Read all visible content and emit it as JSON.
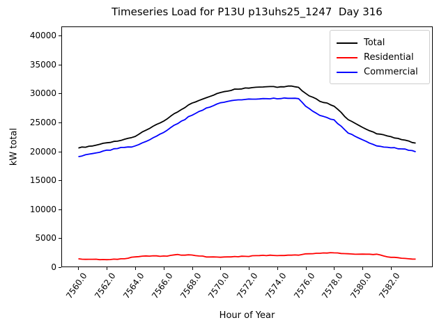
{
  "figure": {
    "background": "#ffffff",
    "frame_color": "#000000"
  },
  "chart_data": {
    "type": "line",
    "title": "Timeseries Load for P13U p13uhs25_1247  Day 316",
    "xlabel": "Hour of Year",
    "ylabel": "kW total",
    "xlim": [
      7558.8,
      7584.95
    ],
    "ylim": [
      0,
      41600
    ],
    "grid": false,
    "legend_position": "upper right",
    "sample_interval_hours": 0.25,
    "xtick_values": [
      7560,
      7562,
      7564,
      7566,
      7568,
      7570,
      7572,
      7574,
      7576,
      7578,
      7580,
      7582
    ],
    "xtick_labels": [
      "7560.0",
      "7562.0",
      "7564.0",
      "7566.0",
      "7568.0",
      "7570.0",
      "7572.0",
      "7574.0",
      "7576.0",
      "7578.0",
      "7580.0",
      "7582.0"
    ],
    "ytick_values": [
      0,
      5000,
      10000,
      15000,
      20000,
      25000,
      30000,
      35000,
      40000
    ],
    "ytick_labels": [
      "0",
      "5000",
      "10000",
      "15000",
      "20000",
      "25000",
      "30000",
      "35000",
      "40000"
    ],
    "x": [
      7560,
      7561,
      7562,
      7563,
      7564,
      7565,
      7566,
      7567,
      7568,
      7569,
      7570,
      7571,
      7572,
      7573,
      7574,
      7575,
      7575.5,
      7576,
      7577,
      7578,
      7579,
      7580,
      7581,
      7582,
      7583,
      7583.75
    ],
    "series": [
      {
        "name": "Total",
        "color": "#000000",
        "values": [
          20600,
          21000,
          21450,
          21900,
          22650,
          23950,
          25250,
          26900,
          28350,
          29350,
          30200,
          30750,
          31000,
          31200,
          31150,
          31250,
          31150,
          29950,
          28700,
          27900,
          25500,
          24100,
          23050,
          22550,
          21950,
          21450
        ]
      },
      {
        "name": "Residential",
        "color": "#ff0000",
        "values": [
          1450,
          1350,
          1300,
          1400,
          1800,
          1950,
          1900,
          2150,
          2100,
          1800,
          1700,
          1800,
          1900,
          2050,
          2000,
          2100,
          2050,
          2300,
          2400,
          2500,
          2300,
          2250,
          2200,
          1700,
          1500,
          1400
        ]
      },
      {
        "name": "Commercial",
        "color": "#0000ff",
        "values": [
          19100,
          19650,
          20150,
          20650,
          20900,
          22000,
          23300,
          24850,
          26300,
          27500,
          28400,
          28900,
          29050,
          29100,
          29150,
          29200,
          29100,
          27750,
          26200,
          25400,
          23200,
          22000,
          20900,
          20700,
          20350,
          19950
        ]
      }
    ]
  }
}
